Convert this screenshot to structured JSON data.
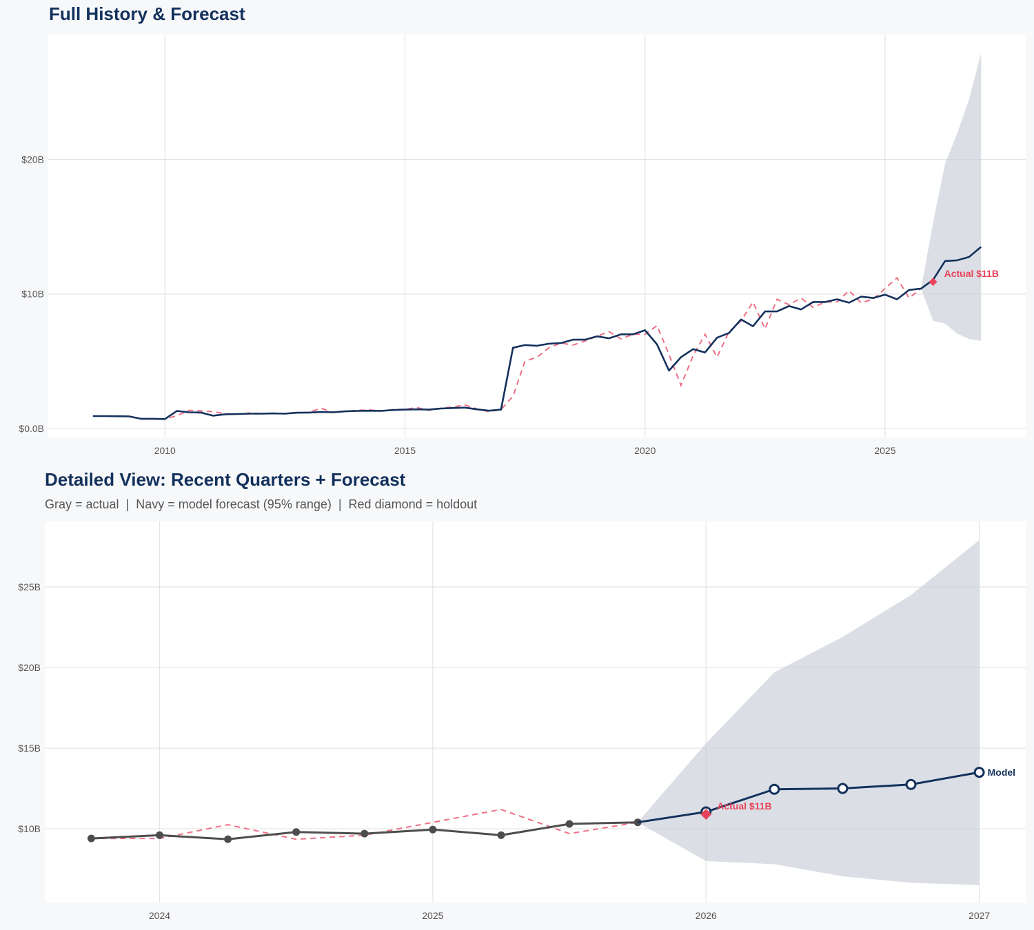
{
  "colors": {
    "navy": "#13315c",
    "actual_gray": "#4d4d4d",
    "backtest_red": "#ee6f84",
    "holdout_red": "#e8435a",
    "band": "#d9dde3",
    "grid": "#e3e3e6"
  },
  "chart_data": [
    {
      "type": "line",
      "title": "Full History & Forecast",
      "xlim": [
        2007.57,
        2027.93
      ],
      "ylim": [
        -0.67,
        29.3
      ],
      "grid": true,
      "x_ticks": [
        2010,
        2015,
        2020,
        2025
      ],
      "x_tick_labels": [
        "2010",
        "2015",
        "2020",
        "2025"
      ],
      "y_ticks": [
        0,
        10,
        20
      ],
      "y_tick_labels": [
        "$0.0B",
        "$10B",
        "$20B"
      ],
      "history": {
        "x_start": 2008.5,
        "step": 0.25,
        "values": [
          0.92,
          0.92,
          0.91,
          0.9,
          0.72,
          0.72,
          0.7,
          1.3,
          1.2,
          1.18,
          0.95,
          1.05,
          1.07,
          1.1,
          1.1,
          1.12,
          1.1,
          1.17,
          1.18,
          1.22,
          1.2,
          1.27,
          1.3,
          1.32,
          1.3,
          1.37,
          1.4,
          1.42,
          1.4,
          1.48,
          1.52,
          1.55,
          1.42,
          1.32,
          1.4,
          6.0,
          6.2,
          6.15,
          6.3,
          6.35,
          6.6,
          6.6,
          6.85,
          6.7,
          7.0,
          7.0,
          7.3,
          6.25,
          4.3,
          5.3,
          5.9,
          5.65,
          6.75,
          7.1,
          8.1,
          7.6,
          8.7,
          8.7,
          9.1,
          8.85,
          9.4,
          9.4,
          9.6,
          9.35,
          9.8,
          9.7,
          9.95,
          9.6,
          10.3,
          10.4
        ]
      },
      "backtest": {
        "x_start": 2009.5,
        "step": 0.25,
        "values": [
          0.72,
          0.72,
          0.7,
          0.95,
          1.35,
          1.3,
          1.25,
          1.1,
          1.05,
          1.15,
          1.12,
          1.12,
          1.12,
          1.17,
          1.2,
          1.5,
          1.2,
          1.25,
          1.35,
          1.38,
          1.3,
          1.4,
          1.42,
          1.55,
          1.35,
          1.5,
          1.6,
          1.75,
          1.45,
          1.25,
          1.4,
          2.4,
          5.0,
          5.3,
          6.0,
          6.35,
          6.2,
          6.5,
          6.85,
          7.2,
          6.65,
          7.0,
          7.0,
          7.65,
          5.5,
          3.2,
          5.4,
          7.0,
          5.3,
          7.2,
          8.0,
          9.4,
          7.4,
          9.6,
          9.2,
          9.7,
          9.0,
          9.4,
          9.4,
          10.25,
          9.35,
          9.6,
          10.4,
          11.2,
          9.7,
          10.4
        ]
      },
      "forecast": {
        "x": [
          2025.75,
          2026,
          2026.25,
          2026.5,
          2026.75,
          2027
        ],
        "values": [
          10.4,
          11.05,
          12.45,
          12.5,
          12.75,
          13.5
        ],
        "upper": [
          10.4,
          15.3,
          19.7,
          21.9,
          24.5,
          27.9
        ],
        "lower": [
          10.4,
          8.0,
          7.8,
          7.05,
          6.65,
          6.5
        ]
      },
      "holdout": {
        "x": 2026,
        "value": 10.9,
        "label": "Actual $11B"
      }
    },
    {
      "type": "line",
      "title": "Detailed View: Recent Quarters + Forecast",
      "subtitle": "Gray = actual  |  Navy = model forecast (95% range)  |  Red diamond = holdout",
      "xlim": [
        2023.58,
        2027.17
      ],
      "ylim": [
        5.43,
        29.06
      ],
      "grid": true,
      "x_ticks": [
        2024,
        2025,
        2026,
        2027
      ],
      "x_tick_labels": [
        "2024",
        "2025",
        "2026",
        "2027"
      ],
      "y_ticks": [
        10,
        15,
        20,
        25
      ],
      "y_tick_labels": [
        "$10B",
        "$15B",
        "$20B",
        "$25B"
      ],
      "actual": {
        "x": [
          2023.75,
          2024,
          2024.25,
          2024.5,
          2024.75,
          2025,
          2025.25,
          2025.5,
          2025.75
        ],
        "values": [
          9.4,
          9.6,
          9.35,
          9.8,
          9.7,
          9.95,
          9.6,
          10.3,
          10.4
        ]
      },
      "backtest": {
        "x": [
          2023.75,
          2024,
          2024.25,
          2024.5,
          2024.75,
          2025,
          2025.25,
          2025.5,
          2025.75
        ],
        "values": [
          9.4,
          9.4,
          10.25,
          9.35,
          9.6,
          10.4,
          11.2,
          9.7,
          10.4
        ]
      },
      "forecast": {
        "x": [
          2025.75,
          2026,
          2026.25,
          2026.5,
          2026.75,
          2027
        ],
        "values": [
          10.4,
          11.05,
          12.45,
          12.5,
          12.75,
          13.5
        ],
        "upper": [
          10.4,
          15.3,
          19.7,
          21.9,
          24.5,
          27.9
        ],
        "lower": [
          10.4,
          8.0,
          7.8,
          7.05,
          6.65,
          6.5
        ],
        "label": "Model"
      },
      "holdout": {
        "x": 2026,
        "value": 10.9,
        "label": "Actual $11B"
      }
    }
  ]
}
